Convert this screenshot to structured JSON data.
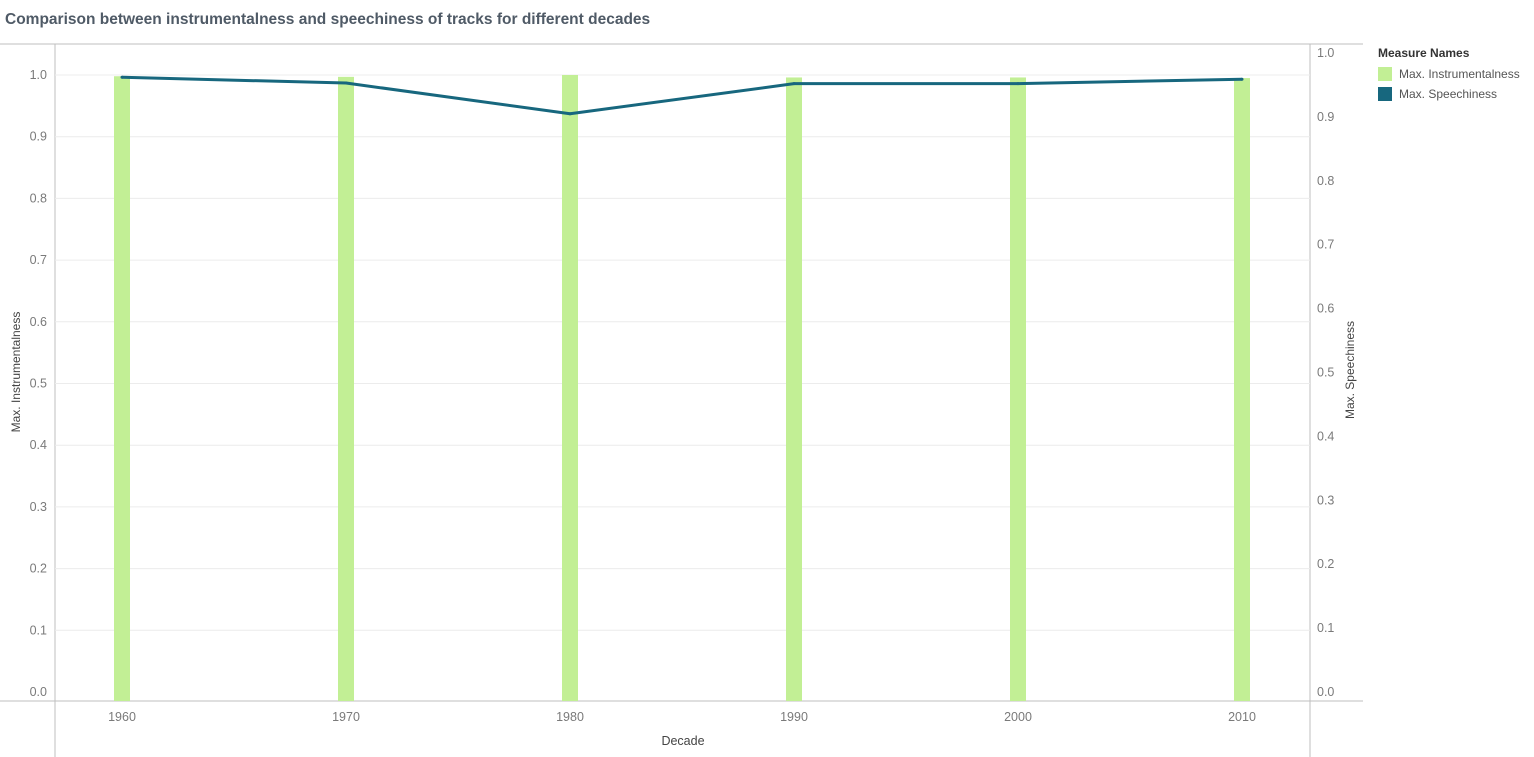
{
  "title": "Comparison between instrumentalness and speechiness of tracks for different decades",
  "colors": {
    "bar": "#c2ef95",
    "line": "#17677e",
    "grid": "#ececec",
    "axis": "#bfbfbf",
    "tick": "#7a7a7a"
  },
  "legend": {
    "title": "Measure Names",
    "items": [
      {
        "label": "Max. Instrumentalness",
        "color": "#c2ef95"
      },
      {
        "label": "Max. Speechiness",
        "color": "#17677e"
      }
    ]
  },
  "chart_data": {
    "type": "bar",
    "xlabel": "Decade",
    "categories": [
      "1960",
      "1970",
      "1980",
      "1990",
      "2000",
      "2010"
    ],
    "y_left": {
      "label": "Max. Instrumentalness",
      "range": [
        0,
        1.0
      ],
      "ticks": [
        "0.0",
        "0.1",
        "0.2",
        "0.3",
        "0.4",
        "0.5",
        "0.6",
        "0.7",
        "0.8",
        "0.9",
        "1.0"
      ]
    },
    "y_right": {
      "label": "Max. Speechiness",
      "range": [
        0,
        1.0
      ],
      "ticks": [
        "0.0",
        "0.1",
        "0.2",
        "0.3",
        "0.4",
        "0.5",
        "0.6",
        "0.7",
        "0.8",
        "0.9",
        "1.0"
      ]
    },
    "series": [
      {
        "name": "Max. Instrumentalness",
        "type": "bar",
        "axis": "left",
        "values": [
          0.998,
          0.997,
          1.0,
          0.996,
          0.996,
          0.995
        ]
      },
      {
        "name": "Max. Speechiness",
        "type": "line",
        "axis": "right",
        "values": [
          0.962,
          0.953,
          0.905,
          0.952,
          0.952,
          0.959
        ]
      }
    ],
    "grid": true,
    "legend_position": "right"
  }
}
